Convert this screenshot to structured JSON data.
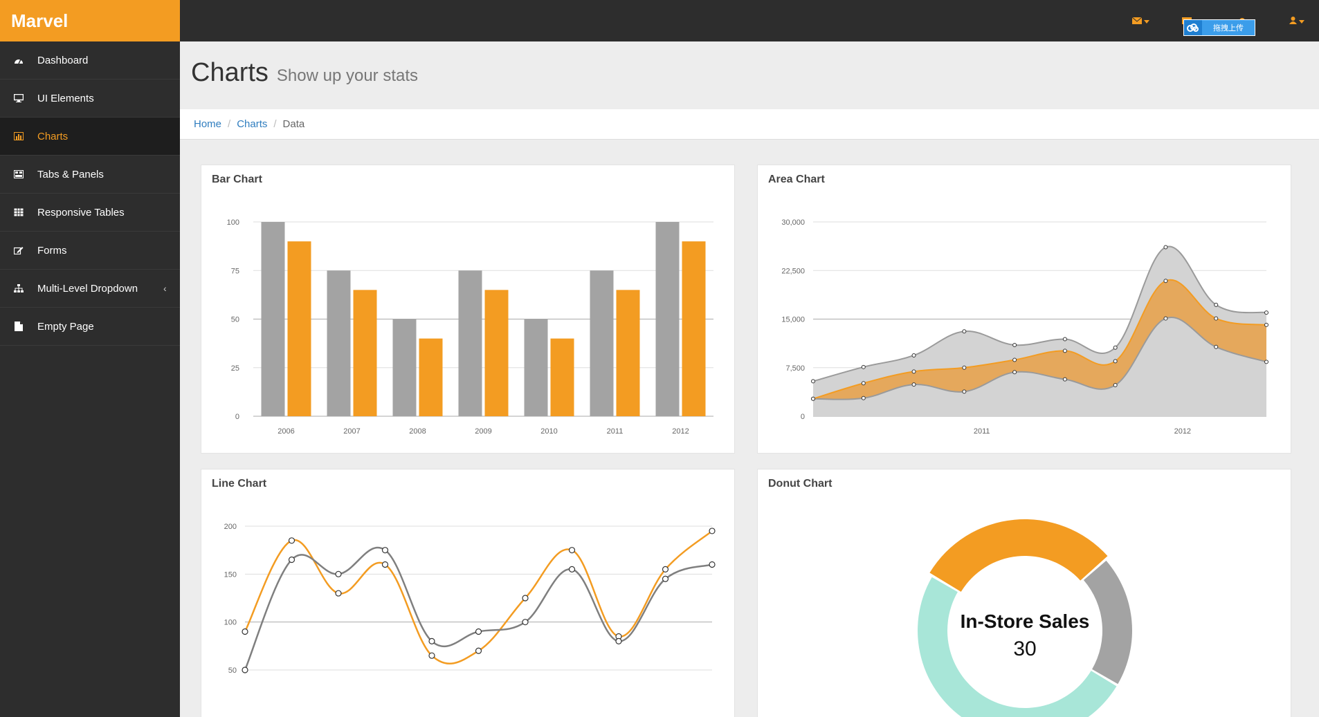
{
  "brand": "Marvel",
  "colors": {
    "accent": "#f39c22",
    "gray": "#a3a3a3",
    "teal": "#a8e6d8",
    "dark": "#2d2d2d"
  },
  "sidebar": {
    "items": [
      {
        "label": "Dashboard",
        "icon": "dashboard-icon"
      },
      {
        "label": "UI Elements",
        "icon": "monitor-icon"
      },
      {
        "label": "Charts",
        "icon": "bar-chart-icon",
        "active": true
      },
      {
        "label": "Tabs & Panels",
        "icon": "tabs-icon"
      },
      {
        "label": "Responsive Tables",
        "icon": "table-icon"
      },
      {
        "label": "Forms",
        "icon": "edit-icon"
      },
      {
        "label": "Multi-Level Dropdown",
        "icon": "sitemap-icon",
        "caret": "‹"
      },
      {
        "label": "Empty Page",
        "icon": "file-icon"
      }
    ]
  },
  "topbar": {
    "upload_badge": "拖拽上传"
  },
  "header": {
    "title": "Charts",
    "subtitle": "Show up your stats"
  },
  "breadcrumb": {
    "home": "Home",
    "charts": "Charts",
    "current": "Data"
  },
  "panels": {
    "bar": "Bar Chart",
    "area": "Area Chart",
    "line": "Line Chart",
    "donut": "Donut Chart"
  },
  "chart_data": [
    {
      "type": "bar",
      "title": "Bar Chart",
      "categories": [
        "2006",
        "2007",
        "2008",
        "2009",
        "2010",
        "2011",
        "2012"
      ],
      "series": [
        {
          "color": "#a3a3a3",
          "values": [
            100,
            75,
            50,
            75,
            50,
            75,
            100
          ]
        },
        {
          "color": "#f39c22",
          "values": [
            90,
            65,
            40,
            65,
            40,
            65,
            90
          ]
        }
      ],
      "ylim": [
        0,
        100
      ],
      "yticks": [
        "100",
        "75",
        "50",
        "25",
        "0"
      ],
      "grid": true
    },
    {
      "type": "area",
      "title": "Area Chart",
      "x_tick_labels": [
        "2011",
        "2012"
      ],
      "yticks": [
        "30,000",
        "22,500",
        "15,000",
        "7,500",
        "0"
      ],
      "ylim": [
        0,
        30000
      ],
      "x": [
        0,
        1,
        2,
        3,
        4,
        5,
        6,
        7,
        8,
        9
      ],
      "series": [
        {
          "color": "#a3a3a3",
          "values": [
            2700,
            2800,
            4900,
            3800,
            6800,
            5700,
            4800,
            15100,
            10700,
            8400
          ]
        },
        {
          "color": "#f39c22",
          "values": [
            2700,
            5100,
            6900,
            7500,
            8700,
            10100,
            8500,
            20900,
            15100,
            14100
          ]
        },
        {
          "color": "#a3a3a3",
          "values": [
            5400,
            7600,
            9400,
            13100,
            11000,
            11900,
            10600,
            26100,
            17200,
            16000
          ]
        }
      ]
    },
    {
      "type": "line",
      "title": "Line Chart",
      "yticks": [
        "200",
        "150",
        "100",
        "50"
      ],
      "ylim": [
        50,
        200
      ],
      "x": [
        0,
        1,
        2,
        3,
        4,
        5,
        6,
        7,
        8,
        9,
        10
      ],
      "series": [
        {
          "color": "#f39c22",
          "values": [
            90,
            185,
            130,
            160,
            65,
            70,
            125,
            175,
            85,
            155,
            195
          ]
        },
        {
          "color": "#7f7f7f",
          "values": [
            50,
            165,
            150,
            175,
            80,
            90,
            100,
            155,
            80,
            145,
            160
          ]
        }
      ]
    },
    {
      "type": "pie",
      "title": "Donut Chart",
      "center_label": "In-Store Sales",
      "center_value": "30",
      "slices": [
        {
          "label": "In-Store Sales",
          "value": 30,
          "color": "#f39c22"
        },
        {
          "value": 20,
          "color": "#a3a3a3"
        },
        {
          "value": 50,
          "color": "#a8e6d8"
        }
      ]
    }
  ]
}
